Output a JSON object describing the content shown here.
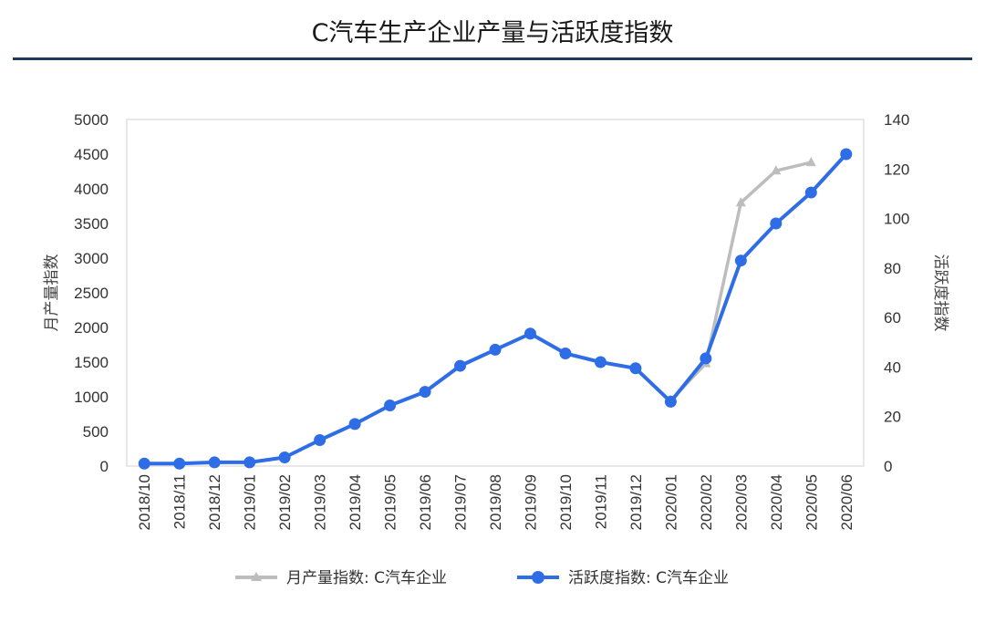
{
  "page": {
    "title": "C汽车生产企业产量与活跃度指数"
  },
  "chart_data": {
    "type": "line",
    "categories": [
      "2018/10",
      "2018/11",
      "2018/12",
      "2019/01",
      "2019/02",
      "2019/03",
      "2019/04",
      "2019/05",
      "2019/06",
      "2019/07",
      "2019/08",
      "2019/09",
      "2019/10",
      "2019/11",
      "2019/12",
      "2020/01",
      "2020/02",
      "2020/03",
      "2020/04",
      "2020/05",
      "2020/06"
    ],
    "ylabel_left": "月产量指数",
    "ylabel_right": "活跃度指数",
    "ylim_left": [
      0,
      5000
    ],
    "ylim_right": [
      0,
      140
    ],
    "yticks_left": [
      0,
      500,
      1000,
      1500,
      2000,
      2500,
      3000,
      3500,
      4000,
      4500,
      5000
    ],
    "yticks_right": [
      0,
      20,
      40,
      60,
      80,
      100,
      120,
      140
    ],
    "grid": false,
    "legend_position": "bottom",
    "series": [
      {
        "name": "月产量指数: C汽车企业",
        "axis": "left",
        "color": "#bdbdbd",
        "marker": "triangle",
        "values": [
          null,
          null,
          null,
          null,
          null,
          null,
          null,
          null,
          null,
          null,
          null,
          null,
          null,
          null,
          null,
          950,
          1480,
          3800,
          4260,
          4380,
          null
        ]
      },
      {
        "name": "活跃度指数: C汽车企业",
        "axis": "right",
        "color": "#2f6de6",
        "marker": "circle",
        "values": [
          1,
          1,
          1.5,
          1.5,
          3.5,
          10.5,
          17,
          24.5,
          30,
          40.5,
          47,
          53.5,
          45.5,
          42,
          39.5,
          26,
          43.5,
          83,
          98,
          110.5,
          126
        ]
      }
    ]
  }
}
